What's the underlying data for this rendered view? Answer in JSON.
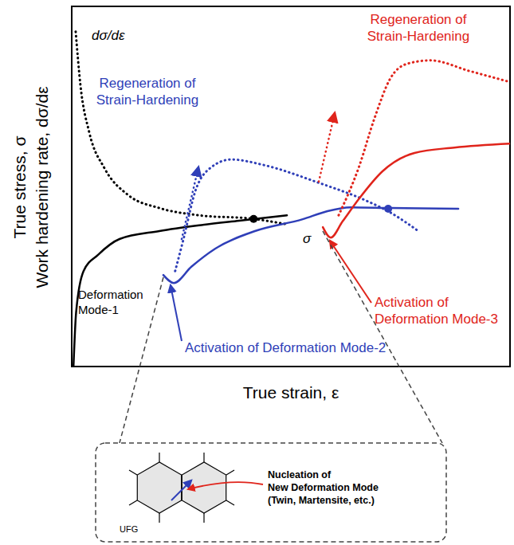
{
  "chart_data": {
    "type": "line",
    "xlabel": "True strain, ε",
    "ylabel": [
      "True stress, σ",
      "Work hardening rate, dσ/dε"
    ],
    "xlim": [
      0,
      10
    ],
    "ylim": [
      0,
      10
    ],
    "tick_labels": false,
    "grid": false,
    "series": [
      {
        "name": "σ",
        "color": "#000000",
        "line_style": "solid",
        "x": [
          0.04,
          0.1,
          0.27,
          0.6,
          1.09,
          2.0,
          2.91,
          3.82,
          4.91
        ],
        "values": [
          0,
          1.5,
          2.65,
          3.1,
          3.54,
          3.76,
          3.92,
          4.05,
          4.2
        ],
        "highlight": [
          4.15,
          4.1
        ]
      },
      {
        "name": "dσ/dε",
        "color": "#000000",
        "line_style": "dotted",
        "x": [
          0.09,
          0.2,
          0.4,
          0.75,
          1.3,
          2.0,
          2.9,
          4.15,
          4.9
        ],
        "values": [
          9.3,
          7.8,
          6.5,
          5.5,
          4.75,
          4.4,
          4.2,
          4.1,
          3.95
        ]
      },
      {
        "color": "#2f3fb8",
        "line_style": "solid",
        "x": [
          2.09,
          2.33,
          2.73,
          3.27,
          4.18,
          5.27,
          5.82,
          6.36,
          7.27,
          8.82
        ],
        "values": [
          2.54,
          2.32,
          2.77,
          3.27,
          3.76,
          4.09,
          4.31,
          4.42,
          4.4,
          4.38
        ],
        "highlight": [
          7.22,
          4.38
        ]
      },
      {
        "color": "#2f3fb8",
        "line_style": "dotted",
        "x": [
          2.36,
          2.55,
          2.82,
          3.18,
          3.64,
          4.36,
          5.64,
          6.73,
          7.22,
          7.91
        ],
        "values": [
          2.65,
          3.54,
          4.87,
          5.53,
          5.75,
          5.6,
          5.1,
          4.6,
          4.31,
          3.76
        ]
      },
      {
        "color": "#e0241b",
        "line_style": "solid",
        "x": [
          5.73,
          5.91,
          6.18,
          6.55,
          7.09,
          7.82,
          8.73,
          10
        ],
        "values": [
          3.87,
          3.58,
          4.03,
          4.65,
          5.42,
          5.93,
          6.08,
          6.19
        ]
      },
      {
        "color": "#e0241b",
        "line_style": "dotted",
        "x": [
          6.09,
          6.55,
          6.91,
          7.27,
          7.64,
          8.18,
          9.09,
          10
        ],
        "values": [
          4.2,
          5.53,
          6.9,
          8.0,
          8.4,
          8.5,
          8.2,
          7.9
        ]
      }
    ],
    "annotations": [
      {
        "lines": [
          "Deformation",
          "Mode-1"
        ],
        "color": "#000000"
      },
      {
        "lines": [
          "Regeneration of",
          "Strain-Hardening"
        ],
        "color": "#2f3fb8"
      },
      {
        "lines": [
          "Regeneration of",
          "Strain-Hardening"
        ],
        "color": "#e0241b"
      },
      {
        "lines": [
          "Activation of Deformation Mode-2"
        ],
        "color": "#2f3fb8"
      },
      {
        "lines": [
          "Activation of",
          "Deformation Mode-3"
        ],
        "color": "#e0241b"
      }
    ],
    "inset": {
      "label": "UFG",
      "text": [
        "Nucleation of",
        "New Deformation Mode",
        "(Twin, Martensite, etc.)"
      ]
    }
  }
}
